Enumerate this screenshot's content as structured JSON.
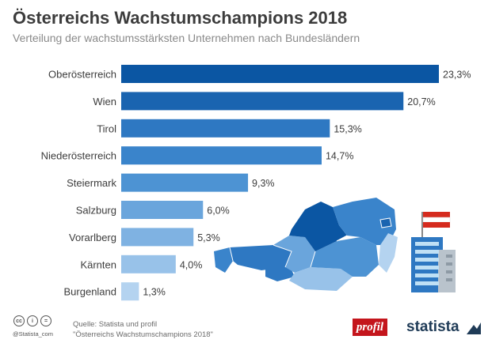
{
  "title": "Österreichs Wachstumschampions 2018",
  "subtitle": "Verteilung der wachstumsstärksten Unternehmen nach Bundesländern",
  "chart_data": {
    "type": "bar",
    "orientation": "horizontal",
    "categories": [
      "Oberösterreich",
      "Wien",
      "Tirol",
      "Niederösterreich",
      "Steiermark",
      "Salzburg",
      "Vorarlberg",
      "Kärnten",
      "Burgenland"
    ],
    "values": [
      23.3,
      20.7,
      15.3,
      14.7,
      9.3,
      6.0,
      5.3,
      4.0,
      1.3
    ],
    "value_labels": [
      "23,3%",
      "20,7%",
      "15,3%",
      "14,7%",
      "9,3%",
      "6,0%",
      "5,3%",
      "4,0%",
      "1,3%"
    ],
    "colors": [
      "#0b56a3",
      "#1a64b0",
      "#2e78c2",
      "#3a84cb",
      "#4d93d3",
      "#6aa5dc",
      "#7fb2e2",
      "#98c2e9",
      "#b4d3f0"
    ],
    "xlim": [
      0,
      23.3
    ],
    "grid": false,
    "legend": "none"
  },
  "footer": {
    "source_line1": "Quelle: Statista und profil",
    "source_line2": "\"Österreichs Wachstumschampions 2018\"",
    "handle": "@Statista_com",
    "cc_icons": [
      "cc-icon",
      "by-icon",
      "nd-icon"
    ],
    "profil_logo": "profil",
    "statista_logo": "statista"
  }
}
